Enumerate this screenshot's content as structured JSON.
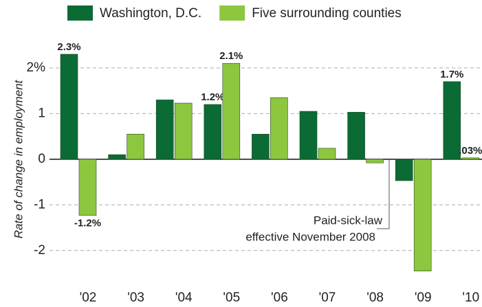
{
  "chart_data": {
    "type": "bar",
    "y_label": "Rate of change in employment",
    "categories": [
      "'02",
      "'03",
      "'04",
      "'05",
      "'06",
      "'07",
      "'08",
      "'09",
      "'10"
    ],
    "series": [
      {
        "name": "Washington, D.C.",
        "color": "#0b6b34",
        "values": [
          2.3,
          0.1,
          1.3,
          1.2,
          0.55,
          1.05,
          1.03,
          -0.47,
          1.7
        ],
        "value_labels": [
          "2.3%",
          null,
          null,
          "1.2%",
          null,
          null,
          null,
          null,
          "1.7%"
        ]
      },
      {
        "name": "Five surrounding counties",
        "color": "#8dc63f",
        "values": [
          -1.23,
          0.55,
          1.23,
          2.1,
          1.35,
          0.24,
          -0.08,
          -2.45,
          0.03
        ],
        "value_labels": [
          "-1.2%",
          null,
          null,
          "2.1%",
          null,
          null,
          null,
          null,
          ".03%"
        ]
      }
    ],
    "annotation": [
      "Paid-sick-law",
      "effective November 2008"
    ],
    "ylim": [
      -2.5,
      2.6
    ],
    "yticks": [
      {
        "value": 2,
        "label": "2%"
      },
      1,
      0,
      -1,
      -2
    ],
    "grid": true
  }
}
